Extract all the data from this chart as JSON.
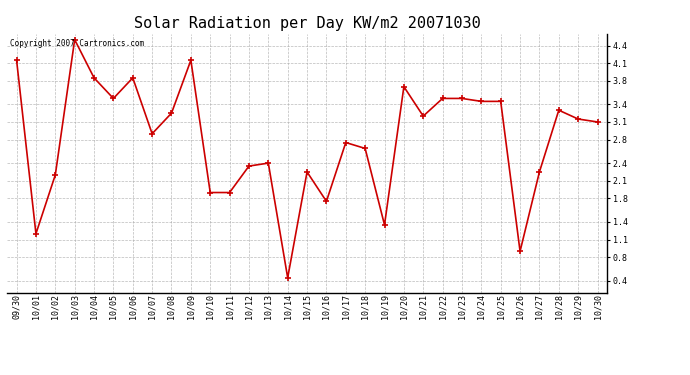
{
  "title": "Solar Radiation per Day KW/m2 20071030",
  "copyright": "Copyright 2007 Cartronics.com",
  "dates": [
    "09/30",
    "10/01",
    "10/02",
    "10/03",
    "10/04",
    "10/05",
    "10/06",
    "10/07",
    "10/08",
    "10/09",
    "10/10",
    "10/11",
    "10/12",
    "10/13",
    "10/14",
    "10/15",
    "10/16",
    "10/17",
    "10/18",
    "10/19",
    "10/20",
    "10/21",
    "10/22",
    "10/23",
    "10/24",
    "10/25",
    "10/26",
    "10/27",
    "10/28",
    "10/29",
    "10/30"
  ],
  "values": [
    4.15,
    1.2,
    2.2,
    4.5,
    3.85,
    3.5,
    3.85,
    2.9,
    3.25,
    4.15,
    1.9,
    1.9,
    2.35,
    2.4,
    0.45,
    2.25,
    1.75,
    2.75,
    2.65,
    1.35,
    3.7,
    3.2,
    3.5,
    3.5,
    3.45,
    3.45,
    0.9,
    2.25,
    3.3,
    3.15,
    3.1
  ],
  "line_color": "#cc0000",
  "marker": "+",
  "marker_size": 4,
  "bg_color": "#ffffff",
  "grid_color": "#aaaaaa",
  "ylim": [
    0.2,
    4.6
  ],
  "yticks": [
    0.4,
    0.8,
    1.1,
    1.4,
    1.8,
    2.1,
    2.4,
    2.8,
    3.1,
    3.4,
    3.8,
    4.1,
    4.4
  ],
  "title_fontsize": 11,
  "tick_fontsize": 6,
  "copyright_fontsize": 5.5
}
